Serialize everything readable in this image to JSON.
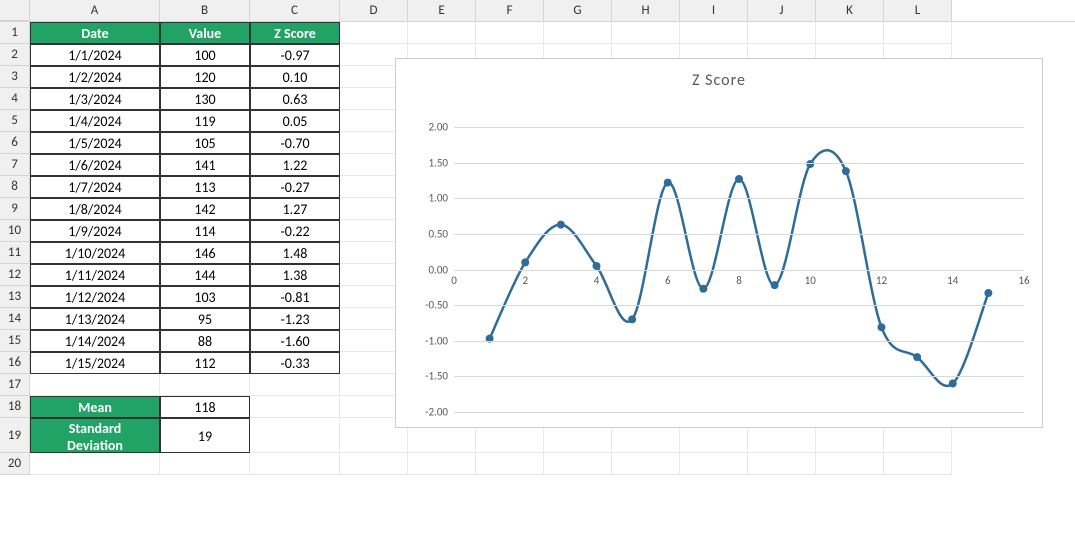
{
  "columns": [
    "A",
    "B",
    "C",
    "D",
    "E",
    "F",
    "G",
    "H",
    "I",
    "J",
    "K",
    "L"
  ],
  "col_widths": {
    "A": 130,
    "B": 90,
    "C": 90,
    "D": 68,
    "E": 68,
    "F": 68,
    "G": 68,
    "H": 68,
    "I": 68,
    "J": 68,
    "K": 68,
    "L": 68
  },
  "table": {
    "headers": [
      "Date",
      "Value",
      "Z Score"
    ],
    "header_bg": "#21a366",
    "header_fg": "#ffffff",
    "rows": [
      {
        "date": "1/1/2024",
        "value": "100",
        "z": "-0.97"
      },
      {
        "date": "1/2/2024",
        "value": "120",
        "z": "0.10"
      },
      {
        "date": "1/3/2024",
        "value": "130",
        "z": "0.63"
      },
      {
        "date": "1/4/2024",
        "value": "119",
        "z": "0.05"
      },
      {
        "date": "1/5/2024",
        "value": "105",
        "z": "-0.70"
      },
      {
        "date": "1/6/2024",
        "value": "141",
        "z": "1.22"
      },
      {
        "date": "1/7/2024",
        "value": "113",
        "z": "-0.27"
      },
      {
        "date": "1/8/2024",
        "value": "142",
        "z": "1.27"
      },
      {
        "date": "1/9/2024",
        "value": "114",
        "z": "-0.22"
      },
      {
        "date": "1/10/2024",
        "value": "146",
        "z": "1.48"
      },
      {
        "date": "1/11/2024",
        "value": "144",
        "z": "1.38"
      },
      {
        "date": "1/12/2024",
        "value": "103",
        "z": "-0.81"
      },
      {
        "date": "1/13/2024",
        "value": "95",
        "z": "-1.23"
      },
      {
        "date": "1/14/2024",
        "value": "88",
        "z": "-1.60"
      },
      {
        "date": "1/15/2024",
        "value": "112",
        "z": "-0.33"
      }
    ]
  },
  "stats": {
    "mean_label": "Mean",
    "mean_value": "118",
    "std_label_line1": "Standard",
    "std_label_line2": "Deviation",
    "std_value": "19"
  },
  "chart": {
    "type": "line",
    "title": "Z Score",
    "title_fontsize": 16,
    "title_color": "#595959",
    "background_color": "#ffffff",
    "border_color": "#cccccc",
    "grid_color": "#d9d9d9",
    "line_color": "#2e6c99",
    "marker_color": "#2e6c99",
    "line_width": 2.5,
    "marker_radius": 4,
    "x_values": [
      1,
      2,
      3,
      4,
      5,
      6,
      7,
      8,
      9,
      10,
      11,
      12,
      13,
      14,
      15
    ],
    "y_values": [
      -0.97,
      0.1,
      0.63,
      0.05,
      -0.7,
      1.22,
      -0.27,
      1.27,
      -0.22,
      1.48,
      1.38,
      -0.81,
      -1.23,
      -1.6,
      -0.33
    ],
    "ylim": [
      -2.0,
      2.0
    ],
    "ytick_step": 0.5,
    "y_ticks": [
      "-2.00",
      "-1.50",
      "-1.00",
      "-0.50",
      "0.00",
      "0.50",
      "1.00",
      "1.50",
      "2.00"
    ],
    "xlim": [
      0,
      16
    ],
    "x_ticks": [
      0,
      2,
      4,
      6,
      8,
      10,
      12,
      14,
      16
    ],
    "axis_label_fontsize": 11,
    "axis_label_color": "#595959"
  }
}
